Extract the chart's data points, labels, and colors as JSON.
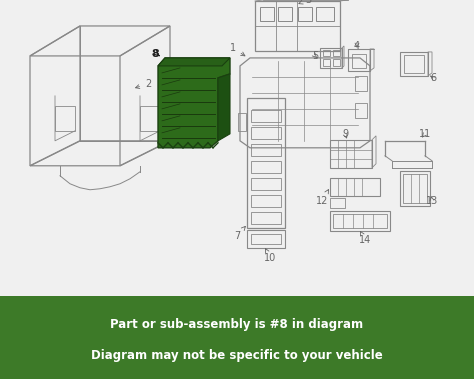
{
  "background_color": "#f0f0f0",
  "diagram_bg": "#f0f0f0",
  "footer_bg": "#3d7a28",
  "footer_text_color": "#ffffff",
  "footer_line1": "Part or sub-assembly is #8 in diagram",
  "footer_line2": "Diagram may not be specific to your vehicle",
  "highlight_color": "#2d6b1a",
  "outline_color": "#888888",
  "label_color": "#666666",
  "border_color": "#aaaaaa",
  "fig_width": 4.74,
  "fig_height": 3.79,
  "dpi": 100
}
